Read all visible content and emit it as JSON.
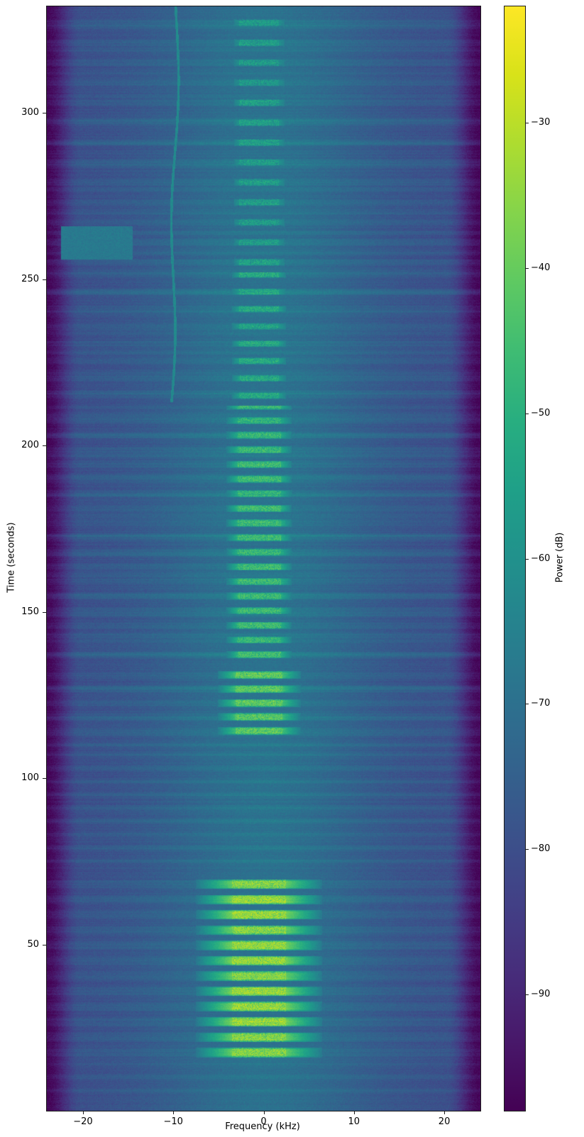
{
  "figure": {
    "background_color": "#ffffff",
    "axes_edge_color": "#1a1a1a"
  },
  "chart_data": {
    "type": "heatmap",
    "subtype": "spectrogram-waterfall",
    "title": "",
    "xlabel": "Frequency (kHz)",
    "ylabel": "Time (seconds)",
    "colorbar_label": "Power (dB)",
    "x_range_khz": [
      -24,
      24
    ],
    "y_range_s": [
      0,
      332
    ],
    "power_range_db": [
      -98,
      -22
    ],
    "x_ticks": [
      -20,
      -10,
      0,
      10,
      20
    ],
    "x_tick_labels": [
      "−20",
      "−10",
      "0",
      "10",
      "20"
    ],
    "y_ticks": [
      50,
      100,
      150,
      200,
      250,
      300
    ],
    "y_tick_labels": [
      "50",
      "100",
      "150",
      "200",
      "250",
      "300"
    ],
    "colorbar_ticks": [
      -30,
      -40,
      -50,
      -60,
      -70,
      -80,
      -90
    ],
    "colorbar_tick_labels": [
      "−30",
      "−40",
      "−50",
      "−60",
      "−70",
      "−80",
      "−90"
    ],
    "grid": false,
    "legend": "none",
    "colormap": "viridis",
    "colormap_stops": [
      "#440154",
      "#48186a",
      "#472d7b",
      "#424086",
      "#3b528b",
      "#33638d",
      "#2c728e",
      "#26828e",
      "#21918c",
      "#1fa088",
      "#28ae80",
      "#3fbc73",
      "#5ec962",
      "#84d44b",
      "#addc30",
      "#d8e219",
      "#fde725"
    ],
    "background_db": -70,
    "edge_rolloff": {
      "start_khz": 20.3,
      "end_khz": 24.0,
      "floor_db": -97
    },
    "signal": {
      "center_khz": -0.5,
      "burst_clusters": [
        {
          "t_start": 16,
          "t_end": 71,
          "period_s": 4.6,
          "duty": 0.62,
          "peak_db": -30,
          "inner_bw_khz": 3.0,
          "outer_bw_khz": 7.0
        },
        {
          "t_start": 113,
          "t_end": 134,
          "period_s": 4.2,
          "duty": 0.55,
          "peak_db": -37,
          "inner_bw_khz": 2.6,
          "outer_bw_khz": 4.6
        },
        {
          "t_start": 136,
          "t_end": 212,
          "period_s": 4.4,
          "duty": 0.5,
          "peak_db": -42,
          "inner_bw_khz": 2.4,
          "outer_bw_khz": 3.6
        },
        {
          "t_start": 214,
          "t_end": 252,
          "period_s": 5.2,
          "duty": 0.4,
          "peak_db": -48,
          "inner_bw_khz": 2.2,
          "outer_bw_khz": 3.0
        },
        {
          "t_start": 254,
          "t_end": 331,
          "period_s": 6.0,
          "duty": 0.38,
          "peak_db": -51,
          "inner_bw_khz": 2.2,
          "outer_bw_khz": 2.8
        }
      ],
      "interference_lines": [
        [
          6,
          3
        ],
        [
          10,
          2.5
        ],
        [
          14,
          2
        ],
        [
          75,
          3
        ],
        [
          79,
          4
        ],
        [
          83,
          3
        ],
        [
          87,
          4.5
        ],
        [
          91,
          3
        ],
        [
          95,
          4
        ],
        [
          99,
          3.5
        ],
        [
          103,
          4
        ],
        [
          107,
          3
        ],
        [
          110,
          4
        ],
        [
          113,
          3
        ],
        [
          118,
          2.5
        ],
        [
          127,
          3
        ],
        [
          137,
          3.5
        ],
        [
          143,
          3
        ],
        [
          149,
          4
        ],
        [
          155,
          3
        ],
        [
          161,
          3.5
        ],
        [
          167,
          3
        ],
        [
          173,
          4
        ],
        [
          179,
          3
        ],
        [
          185,
          3.5
        ],
        [
          191,
          3
        ],
        [
          197,
          4
        ],
        [
          203,
          3
        ],
        [
          209,
          3.5
        ],
        [
          216,
          3
        ],
        [
          222,
          2.5
        ],
        [
          228,
          3
        ],
        [
          234,
          2.5
        ],
        [
          240,
          2
        ],
        [
          246,
          3
        ],
        [
          252,
          2.5
        ],
        [
          258,
          3
        ],
        [
          264,
          2.5
        ],
        [
          270,
          3
        ],
        [
          277,
          2.5
        ],
        [
          284,
          3
        ],
        [
          291,
          2.5
        ],
        [
          298,
          3
        ],
        [
          305,
          2.5
        ],
        [
          312,
          3
        ],
        [
          319,
          2.5
        ],
        [
          326,
          3
        ]
      ],
      "artifacts": {
        "drifting_tone": {
          "f_khz": -10.2,
          "t_start": 213,
          "t_end": 332,
          "level_db": -62
        },
        "noise_patch": {
          "f_start_khz": -22.5,
          "f_end_khz": -14.5,
          "t_start": 256,
          "t_end": 266,
          "level_db": -67
        }
      }
    }
  }
}
